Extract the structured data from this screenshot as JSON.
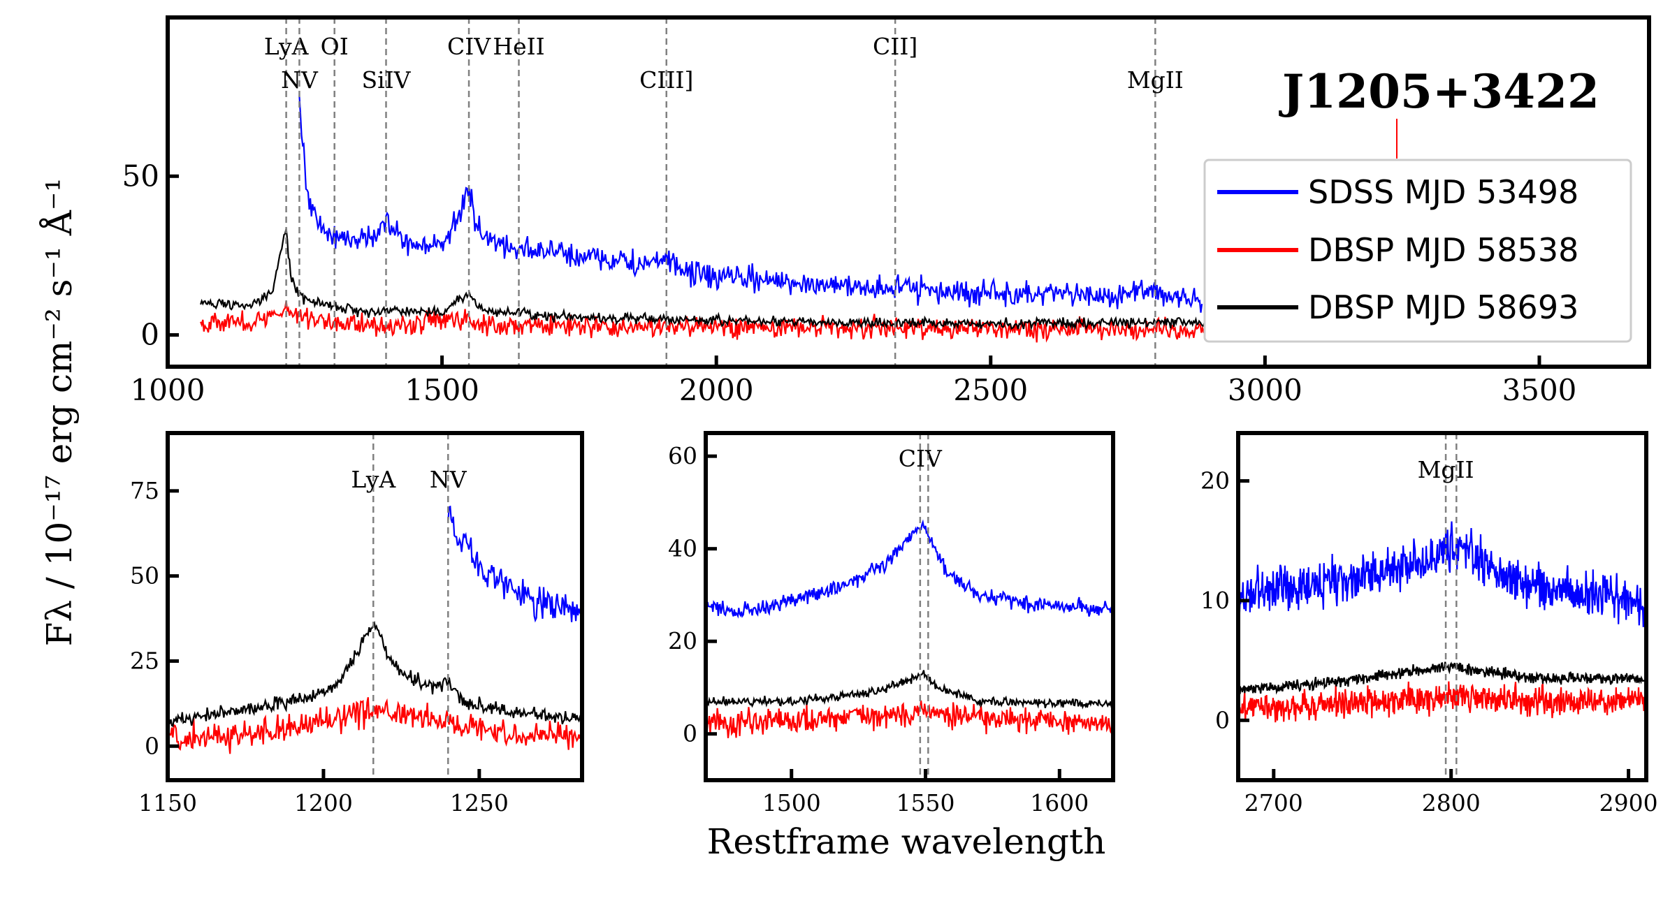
{
  "figure": {
    "ylabel": "Fλ / 10⁻¹⁷ erg cm⁻² s⁻¹ Å⁻¹",
    "xlabel": "Restframe wavelength",
    "object_name": "J1205+3422"
  },
  "colors": {
    "sdss": "#0000ff",
    "dbsp1": "#ff0000",
    "dbsp2": "#000000",
    "line_marker": "#808080"
  },
  "chart_data": [
    {
      "type": "line",
      "panel": "main",
      "title": "J1205+3422",
      "xlabel": "",
      "ylabel": "Fλ / 10⁻¹⁷ erg cm⁻² s⁻¹ Å⁻¹",
      "xlim": [
        1000,
        3700
      ],
      "ylim": [
        -10,
        100
      ],
      "xticks": [
        1000,
        1500,
        2000,
        2500,
        3000,
        3500
      ],
      "yticks": [
        0,
        50
      ],
      "legend_position": "right",
      "legend": [
        "SDSS MJD 53498",
        "DBSP MJD 58538",
        "DBSP MJD 58693"
      ],
      "line_markers": [
        {
          "name": "LyA",
          "x": 1216,
          "row": 0
        },
        {
          "name": "NV",
          "x": 1240,
          "row": 1
        },
        {
          "name": "OI",
          "x": 1304,
          "row": 0
        },
        {
          "name": "SiIV",
          "x": 1398,
          "row": 1
        },
        {
          "name": "CIV",
          "x": 1549,
          "row": 0
        },
        {
          "name": "HeII",
          "x": 1640,
          "row": 0
        },
        {
          "name": "CIII]",
          "x": 1909,
          "row": 1
        },
        {
          "name": "CII]",
          "x": 2326,
          "row": 0
        },
        {
          "name": "MgII",
          "x": 2800,
          "row": 1
        }
      ],
      "series": [
        {
          "name": "SDSS MJD 53498",
          "noise": 3.0,
          "x": [
            1240,
            1245,
            1255,
            1265,
            1280,
            1300,
            1320,
            1340,
            1360,
            1380,
            1395,
            1400,
            1410,
            1430,
            1460,
            1490,
            1510,
            1530,
            1545,
            1550,
            1560,
            1580,
            1620,
            1700,
            1800,
            1870,
            1900,
            1910,
            1930,
            1960,
            2100,
            2300,
            2500,
            2700,
            2790,
            2800,
            2820,
            2860,
            2885
          ],
          "y": [
            74,
            62,
            45,
            38,
            34,
            31,
            30,
            31,
            30,
            32,
            37,
            38,
            33,
            29,
            28,
            28,
            31,
            37,
            44,
            45,
            37,
            30,
            28,
            26,
            24,
            22,
            23,
            24,
            21,
            19,
            17,
            15,
            13,
            12,
            14,
            14,
            13,
            11,
            10
          ]
        },
        {
          "name": "DBSP MJD 58538",
          "noise": 2.5,
          "x": [
            1060,
            1100,
            1150,
            1200,
            1216,
            1240,
            1300,
            1400,
            1549,
            1600,
            1800,
            2000,
            2200,
            2500,
            2800,
            3000,
            3080
          ],
          "y": [
            4,
            4,
            4,
            6,
            9,
            6,
            4,
            3,
            5,
            3,
            2.5,
            2.5,
            2.3,
            2,
            2,
            1.8,
            1.8
          ]
        },
        {
          "name": "DBSP MJD 58693",
          "noise": 1.2,
          "x": [
            1060,
            1100,
            1150,
            1190,
            1205,
            1216,
            1225,
            1240,
            1270,
            1300,
            1380,
            1400,
            1500,
            1540,
            1549,
            1570,
            1700,
            1900,
            2200,
            2500,
            2800,
            3000,
            3080
          ],
          "y": [
            10,
            10,
            9,
            13,
            25,
            33,
            18,
            12,
            10,
            9,
            7,
            8,
            7,
            12,
            13,
            8,
            6,
            5,
            4,
            3.5,
            4,
            3.5,
            3.5
          ]
        }
      ]
    },
    {
      "type": "line",
      "panel": "lya",
      "xlim": [
        1150,
        1283
      ],
      "ylim": [
        -10,
        92
      ],
      "xticks": [
        1150,
        1200,
        1250
      ],
      "yticks": [
        0,
        25,
        50,
        75
      ],
      "line_markers": [
        {
          "name": "LyA",
          "x": 1216
        },
        {
          "name": "NV",
          "x": 1240
        }
      ],
      "series": [
        {
          "name": "SDSS MJD 53498",
          "noise": 3.5,
          "x": [
            1240,
            1243,
            1246,
            1250,
            1255,
            1260,
            1265,
            1270,
            1275,
            1283
          ],
          "y": [
            70,
            62,
            60,
            53,
            50,
            46,
            44,
            42,
            41,
            38
          ]
        },
        {
          "name": "DBSP MJD 58538",
          "noise": 3.0,
          "x": [
            1150,
            1170,
            1190,
            1205,
            1216,
            1225,
            1240,
            1260,
            1283
          ],
          "y": [
            3,
            3,
            5,
            8,
            11,
            9,
            7,
            4,
            3
          ]
        },
        {
          "name": "DBSP MJD 58693",
          "noise": 1.6,
          "x": [
            1150,
            1170,
            1190,
            1200,
            1206,
            1210,
            1214,
            1217,
            1220,
            1225,
            1235,
            1240,
            1245,
            1260,
            1283
          ],
          "y": [
            7,
            10,
            13,
            16,
            20,
            26,
            33,
            35,
            28,
            21,
            18,
            19,
            13,
            10,
            8
          ]
        }
      ]
    },
    {
      "type": "line",
      "panel": "civ",
      "xlim": [
        1468,
        1620
      ],
      "ylim": [
        -10,
        65
      ],
      "xticks": [
        1500,
        1550,
        1600
      ],
      "yticks": [
        0,
        20,
        40,
        60
      ],
      "line_markers": [
        {
          "name": "CIV",
          "x": 1548
        },
        {
          "name": "",
          "x": 1551
        }
      ],
      "series": [
        {
          "name": "SDSS MJD 53498",
          "noise": 1.2,
          "x": [
            1468,
            1480,
            1500,
            1520,
            1535,
            1545,
            1548,
            1552,
            1558,
            1570,
            1590,
            1620
          ],
          "y": [
            28,
            26,
            29,
            32,
            37,
            43,
            45,
            42,
            35,
            30,
            28,
            27
          ]
        },
        {
          "name": "DBSP MJD 58538",
          "noise": 2.2,
          "x": [
            1468,
            1500,
            1540,
            1549,
            1560,
            1620
          ],
          "y": [
            2,
            3,
            4,
            5,
            4,
            2
          ]
        },
        {
          "name": "DBSP MJD 58693",
          "noise": 0.7,
          "x": [
            1468,
            1500,
            1530,
            1545,
            1549,
            1555,
            1570,
            1620
          ],
          "y": [
            7,
            7,
            9,
            12,
            13,
            10,
            7,
            6.5
          ]
        }
      ]
    },
    {
      "type": "line",
      "panel": "mgii",
      "xlim": [
        2680,
        2910
      ],
      "ylim": [
        -5,
        24
      ],
      "xticks": [
        2700,
        2800,
        2900
      ],
      "yticks": [
        0,
        10,
        20
      ],
      "line_markers": [
        {
          "name": "MgII",
          "x": 2797
        },
        {
          "name": "",
          "x": 2803
        }
      ],
      "series": [
        {
          "name": "SDSS MJD 53498",
          "noise": 1.4,
          "x": [
            2680,
            2700,
            2750,
            2790,
            2805,
            2820,
            2850,
            2880,
            2900,
            2910
          ],
          "y": [
            10,
            11,
            12,
            13.5,
            14.5,
            13,
            11,
            10.5,
            10,
            9
          ]
        },
        {
          "name": "DBSP MJD 58538",
          "noise": 0.9,
          "x": [
            2680,
            2750,
            2800,
            2850,
            2910
          ],
          "y": [
            1,
            1.5,
            2,
            1.5,
            1.5
          ]
        },
        {
          "name": "DBSP MJD 58693",
          "noise": 0.35,
          "x": [
            2680,
            2750,
            2800,
            2850,
            2910
          ],
          "y": [
            2.5,
            3.5,
            4.5,
            3.5,
            3.5
          ]
        }
      ]
    }
  ]
}
